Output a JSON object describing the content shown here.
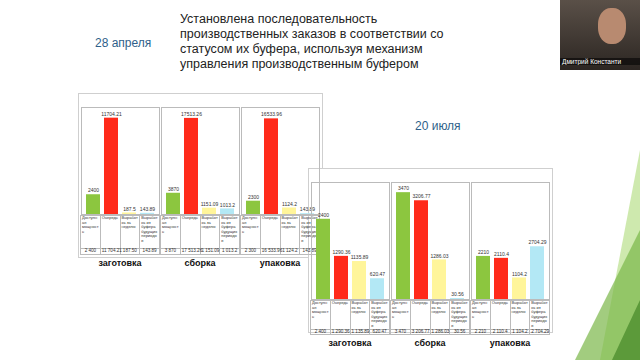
{
  "slide": {
    "title": "Установлена последовательность производственных заказов в соответствии со статусом их буфера, используя механизм управления производственным буфером",
    "dates": [
      "28 апреля",
      "20 июля"
    ],
    "speaker": "Дмитрий Константи"
  },
  "chart_data": [
    {
      "type": "bar",
      "title": "заготовка",
      "categories": [
        "Доступная мощность",
        "Очередь",
        "Выработка за неделю",
        "Выработка из буфера будущих периодов"
      ],
      "values": [
        2400,
        11704.21,
        187.5,
        143.89
      ],
      "value_labels": [
        "2 400",
        "11 704.21",
        "187.50",
        "143.89"
      ],
      "colors": [
        "#8cc63f",
        "#ff2a1a",
        "#fff59a",
        "#b3e8f5"
      ],
      "ylim": [
        0,
        13000
      ],
      "tick_labels": false,
      "data_labels": true
    },
    {
      "type": "bar",
      "title": "сборка",
      "categories": [
        "Доступная мощность",
        "Очередь",
        "Выработка за неделю",
        "Выработка из буфера будущих периодов"
      ],
      "values": [
        3870,
        17513.26,
        1151.09,
        1013.2
      ],
      "value_labels": [
        "3 870",
        "17 513.26",
        "1 151.09",
        "1 013.2"
      ],
      "colors": [
        "#8cc63f",
        "#ff2a1a",
        "#fff59a",
        "#b3e8f5"
      ],
      "ylim": [
        0,
        19500
      ],
      "tick_labels": false,
      "data_labels": true
    },
    {
      "type": "bar",
      "title": "упаковка",
      "categories": [
        "Доступная мощность",
        "Очередь",
        "Выработка за неделю",
        "Выработка из буфера будущих периодов"
      ],
      "values": [
        2300,
        16533.96,
        1124.2,
        143.89
      ],
      "value_labels": [
        "2 300",
        "16 533.96",
        "1 124.2",
        "143.89"
      ],
      "colors": [
        "#8cc63f",
        "#ff2a1a",
        "#fff59a",
        "#b3e8f5"
      ],
      "ylim": [
        0,
        18500
      ],
      "tick_labels": false,
      "data_labels": true
    },
    {
      "type": "bar",
      "title": "заготовка",
      "categories": [
        "Доступная мощность",
        "Очередь",
        "Выработка за неделю",
        "Выработка из буфера будущих периодов"
      ],
      "values": [
        2400,
        1290.36,
        1135.89,
        620.47
      ],
      "value_labels": [
        "2 400",
        "1 290.36",
        "1 135.89",
        "620.47"
      ],
      "colors": [
        "#8cc63f",
        "#ff2a1a",
        "#fff59a",
        "#b3e8f5"
      ],
      "ylim": [
        0,
        3500
      ],
      "tick_labels": false,
      "data_labels": true
    },
    {
      "type": "bar",
      "title": "сборка",
      "categories": [
        "Доступная мощность",
        "Очередь",
        "Выработка за неделю",
        "Выработка из буфера будущих периодов"
      ],
      "values": [
        3470,
        3206.77,
        1286.03,
        30.56
      ],
      "value_labels": [
        "3 470",
        "3 206.77",
        "1 286.03",
        "30.56"
      ],
      "colors": [
        "#8cc63f",
        "#ff2a1a",
        "#fff59a",
        "#b3e8f5"
      ],
      "ylim": [
        0,
        3800
      ],
      "tick_labels": false,
      "data_labels": true
    },
    {
      "type": "bar",
      "title": "упаковка",
      "categories": [
        "Доступная мощность",
        "Очередь",
        "Выработка за неделю",
        "Выработка из буфера будущих периодов"
      ],
      "values": [
        2210,
        2110.4,
        1104.2,
        2704.29
      ],
      "value_labels": [
        "2 210",
        "2 110.4",
        "1 104.2",
        "2 704.29"
      ],
      "colors": [
        "#8cc63f",
        "#ff2a1a",
        "#fff59a",
        "#b3e8f5"
      ],
      "ylim": [
        0,
        6000
      ],
      "tick_labels": false,
      "data_labels": true
    }
  ]
}
